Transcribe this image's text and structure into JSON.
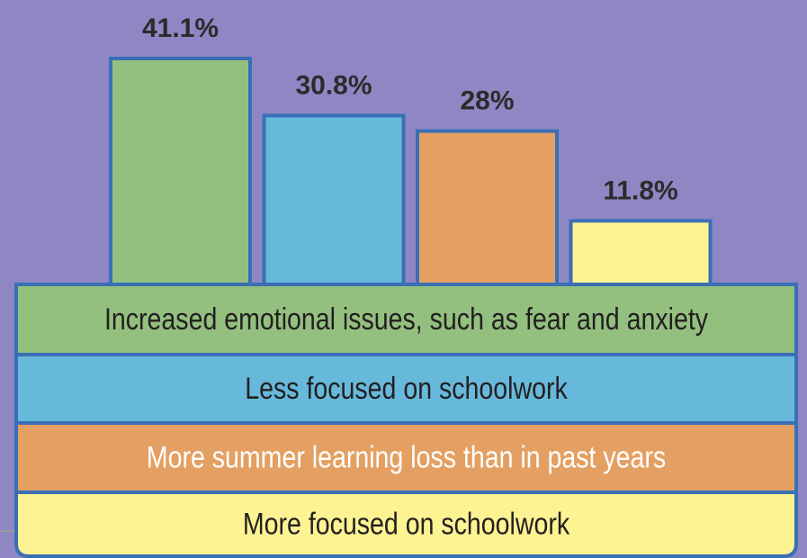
{
  "chart_data": {
    "type": "bar",
    "categories": [
      "Increased emotional issues, such as fear and anxiety",
      "Less focused on schoolwork",
      "More summer learning loss than in past years",
      "More focused on schoolwork"
    ],
    "values": [
      41.1,
      30.8,
      28,
      11.8
    ],
    "value_labels": [
      "41.1%",
      "30.8%",
      "28%",
      "11.8%"
    ],
    "colors": [
      "#93c07f",
      "#67b9db",
      "#e4a062",
      "#fdf392"
    ]
  }
}
